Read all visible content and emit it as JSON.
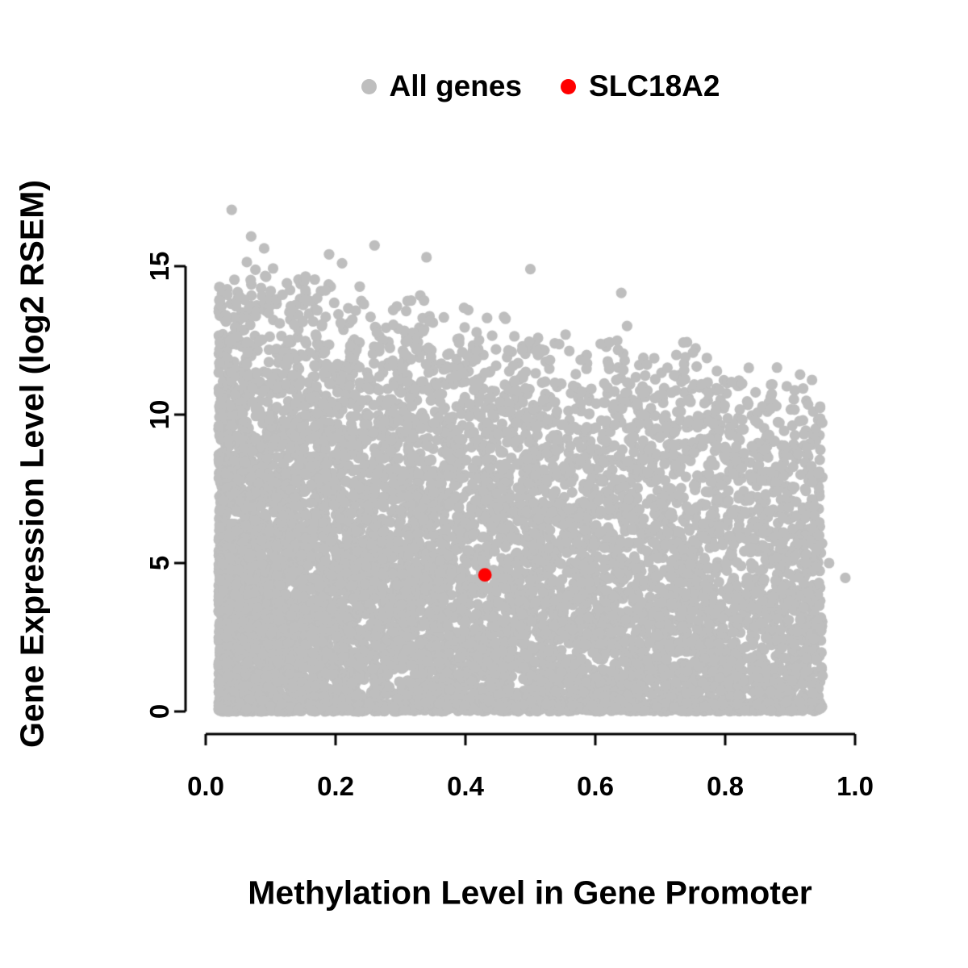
{
  "legend": {
    "items": [
      {
        "label": "All genes",
        "color": "#bebebe",
        "icon": "all-genes-point-icon"
      },
      {
        "label": "SLC18A2",
        "color": "#ff0000",
        "icon": "slc18a2-point-icon"
      }
    ]
  },
  "chart_data": {
    "type": "scatter",
    "title": "",
    "xlabel": "Methylation Level in Gene Promoter",
    "ylabel": "Gene Expression Level (log2 RSEM)",
    "xlim": [
      0.0,
      1.0
    ],
    "ylim": [
      0,
      15
    ],
    "x_ticks": [
      "0.0",
      "0.2",
      "0.4",
      "0.6",
      "0.8",
      "1.0"
    ],
    "x_tick_values": [
      0.0,
      0.2,
      0.4,
      0.6,
      0.8,
      1.0
    ],
    "y_ticks": [
      "0",
      "5",
      "10",
      "15"
    ],
    "y_tick_values": [
      0,
      5,
      10,
      15
    ],
    "grid": false,
    "legend_position": "top",
    "series": [
      {
        "name": "All genes",
        "color": "#bebebe",
        "type": "cloud",
        "n": 9000,
        "seed": 7,
        "x_range": [
          0.02,
          0.95
        ],
        "x_skew": 1.35,
        "y_envelope": {
          "intercept": 15.2,
          "slope": -4.0,
          "jitter": 0.9
        },
        "y_skew": 0.62,
        "bottom_band": {
          "fraction": 0.1,
          "height": 0.3
        },
        "outliers": [
          [
            0.04,
            16.9
          ],
          [
            0.07,
            16.0
          ],
          [
            0.09,
            15.6
          ],
          [
            0.19,
            15.4
          ],
          [
            0.26,
            15.7
          ],
          [
            0.34,
            15.3
          ],
          [
            0.5,
            14.9
          ],
          [
            0.64,
            14.1
          ],
          [
            0.21,
            15.1
          ],
          [
            0.96,
            5.0
          ],
          [
            0.985,
            4.5
          ],
          [
            0.95,
            1.2
          ]
        ]
      },
      {
        "name": "SLC18A2",
        "color": "#ff0000",
        "type": "points",
        "points": [
          [
            0.43,
            4.6
          ]
        ]
      }
    ]
  }
}
